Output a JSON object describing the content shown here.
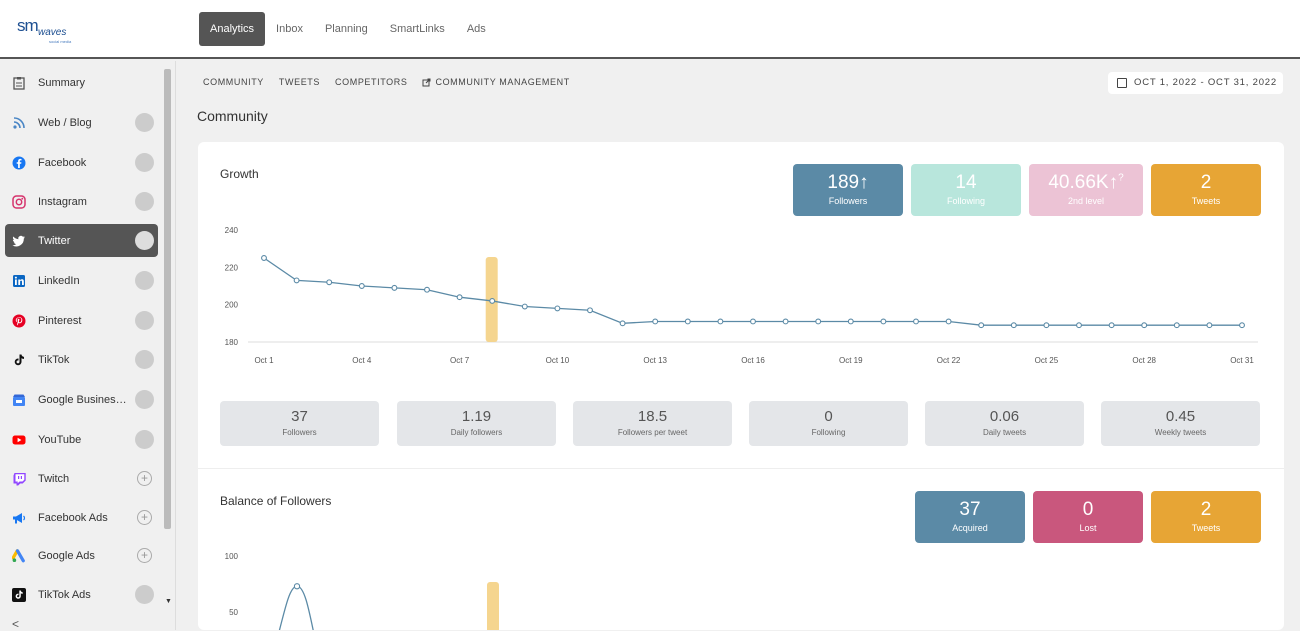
{
  "logo": {
    "sm": "sm",
    "waves": "waves",
    "sub": "social media"
  },
  "topnav": [
    "Analytics",
    "Inbox",
    "Planning",
    "SmartLinks",
    "Ads"
  ],
  "sidebar": {
    "items": [
      {
        "label": "Summary",
        "icon": "clipboard-icon",
        "control": "none"
      },
      {
        "label": "Web / Blog",
        "icon": "rss-icon",
        "control": "toggle"
      },
      {
        "label": "Facebook",
        "icon": "facebook-icon",
        "control": "toggle"
      },
      {
        "label": "Instagram",
        "icon": "instagram-icon",
        "control": "toggle"
      },
      {
        "label": "Twitter",
        "icon": "twitter-icon",
        "control": "toggle",
        "active": true
      },
      {
        "label": "LinkedIn",
        "icon": "linkedin-icon",
        "control": "toggle"
      },
      {
        "label": "Pinterest",
        "icon": "pinterest-icon",
        "control": "toggle"
      },
      {
        "label": "TikTok",
        "icon": "tiktok-icon",
        "control": "toggle"
      },
      {
        "label": "Google Business...",
        "icon": "google-business-icon",
        "control": "toggle"
      },
      {
        "label": "YouTube",
        "icon": "youtube-icon",
        "control": "toggle"
      },
      {
        "label": "Twitch",
        "icon": "twitch-icon",
        "control": "plus"
      },
      {
        "label": "Facebook Ads",
        "icon": "megaphone-icon",
        "control": "plus"
      },
      {
        "label": "Google Ads",
        "icon": "google-ads-icon",
        "control": "plus"
      },
      {
        "label": "TikTok Ads",
        "icon": "tiktok-icon",
        "control": "toggle"
      }
    ],
    "plus_symbol": "+",
    "collapse_symbol": "<",
    "scroll_down_symbol": "▼"
  },
  "subnav": [
    "COMMUNITY",
    "TWEETS",
    "COMPETITORS",
    "COMMUNITY MANAGEMENT"
  ],
  "date_range": "OCT 1, 2022 - OCT 31, 2022",
  "page_title": "Community",
  "growth": {
    "title": "Growth",
    "kpis": [
      {
        "value": "189",
        "arrow": "↑",
        "label": "Followers",
        "color": "#5b8aa6"
      },
      {
        "value": "14",
        "arrow": "",
        "label": "Following",
        "color": "#b8e6dc"
      },
      {
        "value": "40.66K",
        "arrow": "↑",
        "sup": "?",
        "label": "2nd level",
        "color": "#ecc3d5"
      },
      {
        "value": "2",
        "arrow": "",
        "label": "Tweets",
        "color": "#e7a535"
      }
    ],
    "stats": [
      {
        "value": "37",
        "label": "Followers"
      },
      {
        "value": "1.19",
        "label": "Daily followers"
      },
      {
        "value": "18.5",
        "label": "Followers per tweet"
      },
      {
        "value": "0",
        "label": "Following"
      },
      {
        "value": "0.06",
        "label": "Daily tweets"
      },
      {
        "value": "0.45",
        "label": "Weekly tweets"
      }
    ]
  },
  "balance": {
    "title": "Balance of Followers",
    "kpis": [
      {
        "value": "37",
        "label": "Acquired",
        "color": "#5b8aa6"
      },
      {
        "value": "0",
        "label": "Lost",
        "color": "#c9577d"
      },
      {
        "value": "2",
        "label": "Tweets",
        "color": "#e7a535"
      }
    ]
  },
  "chart_data": [
    {
      "type": "line",
      "ylim": [
        180,
        240
      ],
      "yticks": [
        180,
        200,
        220,
        240
      ],
      "xtick_labels": [
        "Oct 1",
        "Oct 4",
        "Oct 7",
        "Oct 10",
        "Oct 13",
        "Oct 16",
        "Oct 19",
        "Oct 22",
        "Oct 25",
        "Oct 28",
        "Oct 31"
      ],
      "x": [
        1,
        2,
        3,
        4,
        5,
        6,
        7,
        8,
        9,
        10,
        11,
        12,
        13,
        14,
        15,
        16,
        17,
        18,
        19,
        20,
        21,
        22,
        23,
        24,
        25,
        26,
        27,
        28,
        29,
        30,
        31
      ],
      "series": [
        {
          "values": [
            225,
            213,
            212,
            210,
            209,
            208,
            204,
            202,
            199,
            198,
            197,
            190,
            191,
            191,
            191,
            191,
            191,
            191,
            191,
            191,
            191,
            191,
            189,
            189,
            189,
            189,
            189,
            189,
            189,
            189,
            189
          ],
          "color": "#5b8aa6"
        }
      ],
      "highlight_day": 8,
      "highlight_color": "#f5d58f"
    },
    {
      "type": "line",
      "yticks": [
        50,
        100
      ],
      "ylim": [
        0,
        100
      ],
      "series": [
        {
          "values_visible": [
            {
              "x": 1,
              "y": 73
            }
          ],
          "color": "#5b8aa6"
        }
      ],
      "highlight_day": 8,
      "highlight_color": "#f5d58f"
    }
  ]
}
